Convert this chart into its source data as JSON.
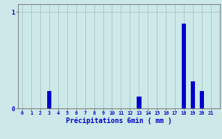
{
  "xlabel": "Précipitations 6min ( mm )",
  "values": [
    0,
    0,
    0,
    0.18,
    0,
    0,
    0,
    0,
    0,
    0,
    0,
    0,
    0,
    0.12,
    0,
    0,
    0,
    0,
    0.88,
    0.28,
    0.18,
    0,
    0
  ],
  "xlim": [
    -0.5,
    22
  ],
  "ylim": [
    0,
    1.08
  ],
  "yticks": [
    0,
    1
  ],
  "xticks": [
    0,
    1,
    2,
    3,
    4,
    5,
    6,
    7,
    8,
    9,
    10,
    11,
    12,
    13,
    14,
    15,
    16,
    17,
    18,
    19,
    20,
    21
  ],
  "bar_color": "#0000cc",
  "bg_color": "#cce8e8",
  "grid_color": "#aac8c8",
  "axis_color": "#808080",
  "label_color": "#0000cc",
  "tick_color": "#0000cc",
  "bar_width": 0.5
}
